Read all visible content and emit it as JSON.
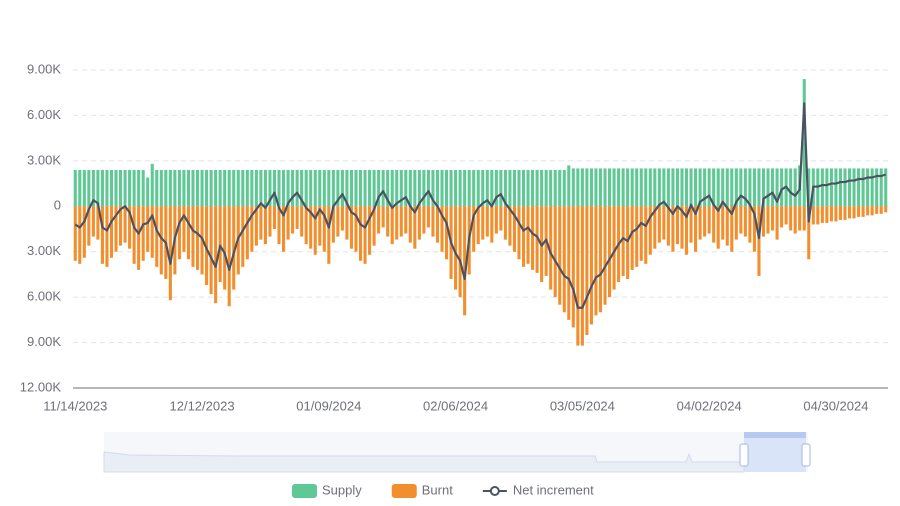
{
  "chart_data": {
    "type": "bar-line",
    "categories": [
      "11/14/2023",
      null,
      null,
      null,
      null,
      null,
      null,
      null,
      null,
      null,
      null,
      null,
      null,
      null,
      null,
      null,
      null,
      null,
      null,
      null,
      null,
      null,
      null,
      null,
      null,
      null,
      null,
      null,
      "12/12/2023",
      null,
      null,
      null,
      null,
      null,
      null,
      null,
      null,
      null,
      null,
      null,
      null,
      null,
      null,
      null,
      null,
      null,
      null,
      null,
      null,
      null,
      null,
      null,
      null,
      null,
      null,
      null,
      "01/09/2024",
      null,
      null,
      null,
      null,
      null,
      null,
      null,
      null,
      null,
      null,
      null,
      null,
      null,
      null,
      null,
      null,
      null,
      null,
      null,
      null,
      null,
      null,
      null,
      null,
      null,
      null,
      null,
      "02/06/2024",
      null,
      null,
      null,
      null,
      null,
      null,
      null,
      null,
      null,
      null,
      null,
      null,
      null,
      null,
      null,
      null,
      null,
      null,
      null,
      null,
      null,
      null,
      null,
      null,
      null,
      null,
      null,
      "03/05/2024",
      null,
      null,
      null,
      null,
      null,
      null,
      null,
      null,
      null,
      null,
      null,
      null,
      null,
      null,
      null,
      null,
      null,
      null,
      null,
      null,
      null,
      null,
      null,
      null,
      null,
      null,
      null,
      "04/02/2024",
      null,
      null,
      null,
      null,
      null,
      null,
      null,
      null,
      null,
      null,
      null,
      null,
      null,
      null,
      null,
      null,
      null,
      null,
      null,
      null,
      null,
      null,
      null,
      null,
      null,
      null,
      null,
      "04/30/2024",
      null,
      null,
      null,
      null,
      null,
      null,
      null,
      null,
      null,
      null,
      null
    ],
    "series": [
      {
        "name": "Supply",
        "kind": "bar",
        "color": "#5ec994",
        "values": [
          2400,
          2400,
          2400,
          2400,
          2400,
          2400,
          2400,
          2400,
          2400,
          2400,
          2400,
          2400,
          2400,
          2400,
          2400,
          2400,
          1900,
          2800,
          2400,
          2400,
          2400,
          2400,
          2400,
          2400,
          2400,
          2400,
          2400,
          2400,
          2400,
          2400,
          2400,
          2400,
          2400,
          2400,
          2400,
          2400,
          2400,
          2400,
          2400,
          2400,
          2400,
          2400,
          2400,
          2400,
          2400,
          2400,
          2400,
          2400,
          2400,
          2400,
          2400,
          2400,
          2400,
          2400,
          2400,
          2400,
          2400,
          2400,
          2400,
          2400,
          2400,
          2400,
          2400,
          2400,
          2400,
          2400,
          2400,
          2400,
          2400,
          2400,
          2400,
          2400,
          2400,
          2400,
          2400,
          2400,
          2400,
          2400,
          2400,
          2400,
          2400,
          2400,
          2400,
          2400,
          2400,
          2400,
          2400,
          2400,
          2400,
          2400,
          2400,
          2400,
          2400,
          2400,
          2400,
          2400,
          2400,
          2400,
          2400,
          2400,
          2400,
          2400,
          2400,
          2400,
          2400,
          2400,
          2400,
          2400,
          2400,
          2700,
          2500,
          2500,
          2500,
          2500,
          2500,
          2500,
          2500,
          2500,
          2500,
          2500,
          2500,
          2500,
          2500,
          2500,
          2500,
          2500,
          2500,
          2500,
          2500,
          2500,
          2500,
          2500,
          2500,
          2500,
          2500,
          2500,
          2500,
          2500,
          2500,
          2500,
          2500,
          2500,
          2500,
          2500,
          2500,
          2500,
          2500,
          2500,
          2500,
          2500,
          2500,
          2500,
          2500,
          2500,
          2500,
          2500,
          2500,
          2500,
          2500,
          2500,
          2700,
          8400,
          2500,
          2500,
          2500,
          2500,
          2500,
          2500,
          2500,
          2500,
          2500,
          2500,
          2500,
          2500,
          2500,
          2500,
          2500,
          2500,
          2500,
          2500
        ]
      },
      {
        "name": "Burnt",
        "kind": "bar",
        "color": "#f28e2c",
        "values": [
          -3600,
          -3800,
          -3400,
          -2600,
          -2000,
          -2200,
          -3800,
          -4000,
          -3400,
          -3000,
          -2600,
          -2400,
          -2800,
          -3800,
          -4200,
          -3600,
          -3000,
          -3400,
          -4000,
          -4500,
          -4800,
          -6200,
          -4500,
          -3500,
          -3000,
          -3500,
          -4000,
          -4200,
          -4500,
          -5200,
          -5800,
          -6400,
          -5000,
          -5500,
          -6600,
          -5500,
          -4500,
          -4000,
          -3500,
          -3000,
          -2600,
          -2200,
          -2500,
          -2000,
          -1500,
          -2500,
          -3000,
          -2200,
          -1800,
          -1500,
          -2000,
          -2500,
          -2800,
          -3200,
          -2600,
          -3000,
          -3800,
          -2400,
          -2000,
          -1600,
          -2200,
          -2800,
          -3000,
          -3600,
          -3800,
          -3200,
          -2600,
          -1800,
          -1400,
          -2000,
          -2500,
          -2200,
          -2000,
          -1800,
          -2400,
          -2800,
          -2200,
          -1800,
          -1400,
          -2000,
          -2400,
          -3000,
          -3500,
          -4800,
          -5500,
          -6000,
          -7200,
          -4500,
          -3000,
          -2500,
          -2200,
          -2000,
          -2400,
          -1800,
          -1600,
          -2200,
          -2600,
          -3000,
          -3500,
          -4000,
          -3800,
          -4200,
          -4400,
          -5000,
          -4600,
          -5500,
          -6000,
          -6500,
          -7000,
          -7500,
          -8000,
          -9200,
          -9200,
          -8500,
          -7800,
          -7200,
          -7000,
          -6500,
          -6000,
          -5500,
          -5000,
          -4600,
          -4800,
          -4200,
          -4000,
          -3600,
          -3800,
          -3200,
          -2800,
          -2400,
          -2200,
          -2600,
          -3000,
          -2500,
          -2800,
          -3200,
          -2400,
          -3000,
          -2200,
          -2000,
          -1800,
          -2400,
          -2800,
          -2200,
          -2600,
          -3000,
          -2200,
          -1800,
          -2000,
          -2400,
          -3000,
          -4600,
          -2000,
          -1800,
          -1600,
          -2200,
          -1400,
          -1200,
          -1600,
          -1800,
          -1600,
          -1600,
          -3500,
          -1200,
          -1200,
          -1100,
          -1100,
          -1000,
          -1000,
          -900,
          -900,
          -800,
          -800,
          -700,
          -700,
          -600,
          -600,
          -500,
          -500,
          -400
        ]
      },
      {
        "name": "Net increment",
        "kind": "line",
        "color": "#4b5363",
        "values": [
          -1200,
          -1400,
          -1000,
          -200,
          400,
          200,
          -1400,
          -1600,
          -1000,
          -600,
          -200,
          0,
          -400,
          -1400,
          -1800,
          -1200,
          -1100,
          -600,
          -1600,
          -2100,
          -2400,
          -3800,
          -2100,
          -1100,
          -600,
          -1100,
          -1600,
          -1800,
          -2100,
          -2800,
          -3400,
          -4000,
          -2600,
          -3100,
          -4200,
          -3100,
          -2100,
          -1600,
          -1100,
          -600,
          -200,
          200,
          -100,
          400,
          900,
          -100,
          -600,
          200,
          600,
          900,
          400,
          -100,
          -400,
          -800,
          -200,
          -600,
          -1400,
          0,
          400,
          800,
          200,
          -400,
          -600,
          -1200,
          -1400,
          -800,
          -200,
          600,
          1000,
          400,
          -100,
          200,
          400,
          600,
          0,
          -400,
          200,
          600,
          1000,
          400,
          0,
          -600,
          -1100,
          -2400,
          -3100,
          -3600,
          -4800,
          -2100,
          -600,
          -100,
          200,
          400,
          0,
          600,
          800,
          200,
          -200,
          -600,
          -1100,
          -1600,
          -1400,
          -1800,
          -2000,
          -2600,
          -2200,
          -3100,
          -3600,
          -4100,
          -4600,
          -4800,
          -5500,
          -6700,
          -6700,
          -6000,
          -5300,
          -4700,
          -4500,
          -4000,
          -3500,
          -3000,
          -2500,
          -2100,
          -2300,
          -1700,
          -1500,
          -1100,
          -1300,
          -700,
          -300,
          100,
          300,
          -100,
          -500,
          0,
          -300,
          -700,
          100,
          -500,
          300,
          500,
          700,
          100,
          -300,
          300,
          -100,
          -500,
          300,
          700,
          500,
          100,
          -500,
          -2100,
          500,
          700,
          900,
          300,
          1100,
          1300,
          900,
          700,
          1100,
          6800,
          -1000,
          1300,
          1300,
          1400,
          1400,
          1500,
          1500,
          1600,
          1600,
          1700,
          1700,
          1800,
          1800,
          1900,
          1900,
          2000,
          2000,
          2100
        ]
      }
    ],
    "ylim": [
      -12000,
      9000
    ],
    "yticks": [
      {
        "value": 9000,
        "label": "9.00K"
      },
      {
        "value": 6000,
        "label": "6.00K"
      },
      {
        "value": 3000,
        "label": "3.00K"
      },
      0,
      {
        "value": -3000,
        "label": "3.00K"
      },
      {
        "value": -6000,
        "label": "6.00K"
      },
      {
        "value": -9000,
        "label": "9.00K"
      },
      {
        "value": -12000,
        "label": "12.00K"
      }
    ],
    "grid": true
  }
}
